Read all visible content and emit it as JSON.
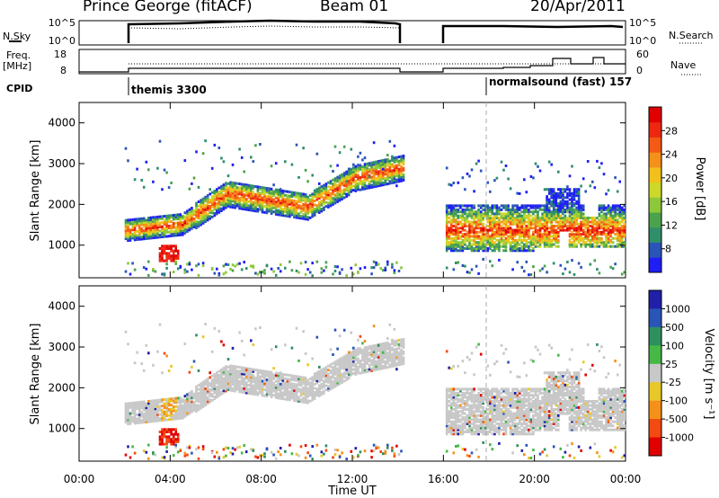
{
  "header": {
    "station": "Prince George (fitACF)",
    "beam": "Beam 01",
    "date": "20/Apr/2011"
  },
  "sky_panel": {
    "left_label": "N.Sky",
    "right_label": "N.Search",
    "ticks_left": [
      "10^5",
      "10^0"
    ],
    "ticks_right": [
      "10^5",
      "10^0"
    ]
  },
  "freq_panel": {
    "left_label_1": "Freq.",
    "left_label_2": "[MHz]",
    "right_label": "Nave",
    "ticks_left": [
      "18",
      "8"
    ],
    "ticks_right": [
      "60",
      "0"
    ]
  },
  "cpid": {
    "label": "CPID",
    "modes": [
      {
        "name": "themis 3300",
        "start_hour": 2.0
      },
      {
        "name": "normalsound (fast)  157",
        "start_hour": 18.0
      }
    ]
  },
  "chart_data": [
    {
      "type": "heatmap",
      "parameter": "Power",
      "ylabel": "Slant Range [km]",
      "yticks": [
        "1000",
        "2000",
        "3000",
        "4000"
      ],
      "ylim": [
        200,
        4500
      ],
      "xlim": [
        0,
        24
      ],
      "data_gaps_hours": [
        [
          0,
          2.0
        ],
        [
          14.2,
          16.0
        ]
      ],
      "colorbar": {
        "title": "Power [dB]",
        "ticks": [
          "8",
          "12",
          "16",
          "20",
          "24",
          "28"
        ],
        "range": [
          4,
          32
        ],
        "colors": [
          "#1e1ef5",
          "#2a55b8",
          "#2f8f6a",
          "#4ca24c",
          "#8cc83a",
          "#ccd82a",
          "#f2c01a",
          "#f5901a",
          "#f45a14",
          "#ee2810",
          "#e00000"
        ]
      }
    },
    {
      "type": "heatmap",
      "parameter": "Velocity",
      "ylabel": "Slant Range [km]",
      "yticks": [
        "1000",
        "2000",
        "3000",
        "4000"
      ],
      "ylim": [
        200,
        4500
      ],
      "xlim": [
        0,
        24
      ],
      "colorbar": {
        "title": "Velocity [m s⁻¹]",
        "ticks": [
          "1000",
          "500",
          "100",
          "25",
          "-25",
          "-100",
          "-500",
          "-1000"
        ],
        "colors": [
          "#2020a8",
          "#2a55b8",
          "#2f8f5f",
          "#45b845",
          "#c8c8c8",
          "#e8c828",
          "#f5901a",
          "#f24a10",
          "#e00000"
        ]
      }
    }
  ],
  "x_axis": {
    "label": "Time UT",
    "ticks": [
      "00:00",
      "04:00",
      "08:00",
      "12:00",
      "16:00",
      "20:00",
      "00:00"
    ]
  }
}
